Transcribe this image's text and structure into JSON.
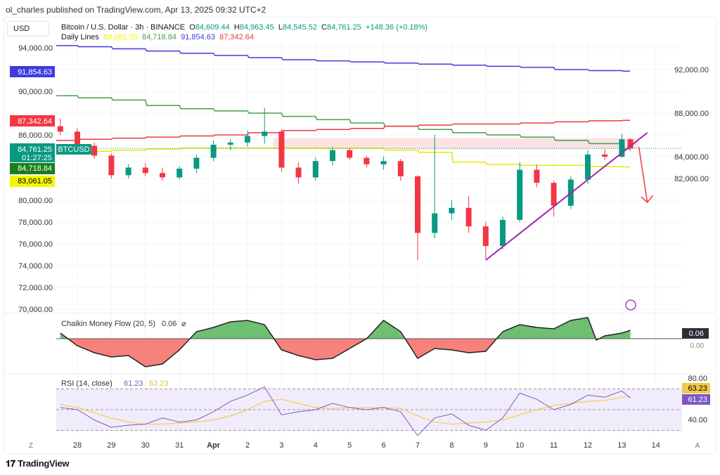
{
  "header": {
    "published": "ol_charles published on TradingView.com, Apr 13, 2025 09:32 UTC+2",
    "currency": "USD",
    "symbol": "Bitcoin / U.S. Dollar · 3h · BINANCE",
    "o_label": "O",
    "o": "84,609.44",
    "h_label": "H",
    "h": "84,963.45",
    "l_label": "L",
    "l": "84,545.52",
    "c_label": "C",
    "c": "84,761.25",
    "change": "+148.36 (+0.18%)",
    "daily_label": "Daily Lines",
    "daily": [
      "83,061.05",
      "84,718.84",
      "91,854.63",
      "87,342.64"
    ]
  },
  "footer": {
    "logo": "TradingView"
  },
  "colors": {
    "up": "#089981",
    "down": "#f23645",
    "blue": "#3c3ce0",
    "green": "#43a047",
    "red": "#f23645",
    "yellow": "#f5f500",
    "rsi": "#7e57c2",
    "rsi_ma": "#f2d36b",
    "trend": "#9c27b0"
  },
  "chart_data": [
    {
      "type": "candlestick",
      "ylim": [
        70000,
        95000
      ],
      "yticks": [
        "94,000.00",
        "92,000.00",
        "90,000.00",
        "88,000.00",
        "86,000.00",
        "84,000.00",
        "82,000.00",
        "80,000.00",
        "78,000.00",
        "76,000.00",
        "74,000.00",
        "72,000.00",
        "70,000.00"
      ],
      "xticks": [
        "28",
        "29",
        "30",
        "31",
        "Apr",
        "2",
        "3",
        "4",
        "5",
        "6",
        "7",
        "8",
        "9",
        "10",
        "11",
        "12",
        "13",
        "14"
      ],
      "xtick_dates": [
        "2025-03-28",
        "2025-03-29",
        "2025-03-30",
        "2025-03-31",
        "2025-04-01",
        "2025-04-02",
        "2025-04-03",
        "2025-04-04",
        "2025-04-05",
        "2025-04-06",
        "2025-04-07",
        "2025-04-08",
        "2025-04-09",
        "2025-04-10",
        "2025-04-11",
        "2025-04-12",
        "2025-04-13",
        "2025-04-14"
      ],
      "symbol_tag": "BTCUSD",
      "countdown": "01:27:25",
      "price_tags": [
        {
          "value": "91,854.63",
          "color": "#3c3ce0"
        },
        {
          "value": "87,342.64",
          "color": "#f23645"
        },
        {
          "value": "84,761.25",
          "color": "#089981"
        },
        {
          "value": "84,718.84",
          "color": "#1b7d1b"
        },
        {
          "value": "83,061.05",
          "color": "#f5f500"
        }
      ],
      "candles": [
        [
          "2025-03-27T12",
          86800,
          87500,
          86000,
          86300
        ],
        [
          "2025-03-28T00",
          86300,
          86600,
          84800,
          85000
        ],
        [
          "2025-03-28T12",
          85000,
          85300,
          83800,
          84100
        ],
        [
          "2025-03-29T00",
          84100,
          84300,
          82000,
          82300
        ],
        [
          "2025-03-29T12",
          82300,
          83300,
          82000,
          83000
        ],
        [
          "2025-03-30T00",
          83000,
          83400,
          82200,
          82500
        ],
        [
          "2025-03-30T12",
          82500,
          83000,
          81800,
          82100
        ],
        [
          "2025-03-31T00",
          82100,
          83100,
          81900,
          82900
        ],
        [
          "2025-03-31T12",
          82900,
          84200,
          82500,
          83900
        ],
        [
          "2025-04-01T00",
          83900,
          85500,
          83600,
          85100
        ],
        [
          "2025-04-01T12",
          85100,
          85600,
          84600,
          85300
        ],
        [
          "2025-04-02T00",
          85300,
          86400,
          84900,
          85900
        ],
        [
          "2025-04-02T12",
          85900,
          88500,
          85200,
          86300
        ],
        [
          "2025-04-03T00",
          86300,
          86500,
          82600,
          83000
        ],
        [
          "2025-04-03T12",
          83000,
          83500,
          81500,
          82100
        ],
        [
          "2025-04-04T00",
          82100,
          83900,
          81800,
          83600
        ],
        [
          "2025-04-04T12",
          83600,
          84900,
          83200,
          84600
        ],
        [
          "2025-04-05T00",
          84600,
          84800,
          83700,
          83900
        ],
        [
          "2025-04-05T12",
          83900,
          84100,
          83000,
          83300
        ],
        [
          "2025-04-06T00",
          83300,
          84000,
          82800,
          83600
        ],
        [
          "2025-04-06T12",
          83600,
          83800,
          81800,
          82200
        ],
        [
          "2025-04-07T00",
          82200,
          82300,
          74500,
          77000
        ],
        [
          "2025-04-07T12",
          77000,
          86000,
          76500,
          78800
        ],
        [
          "2025-04-08T00",
          78800,
          80000,
          78200,
          79300
        ],
        [
          "2025-04-08T12",
          79300,
          80400,
          77000,
          77600
        ],
        [
          "2025-04-09T00",
          77600,
          78000,
          74600,
          75800
        ],
        [
          "2025-04-09T12",
          75800,
          78500,
          75500,
          78200
        ],
        [
          "2025-04-10T00",
          78200,
          83500,
          78000,
          82800
        ],
        [
          "2025-04-10T12",
          82800,
          83300,
          81200,
          81600
        ],
        [
          "2025-04-11T00",
          81600,
          81800,
          78500,
          79500
        ],
        [
          "2025-04-11T12",
          79500,
          82200,
          79200,
          81900
        ],
        [
          "2025-04-12T00",
          81900,
          84600,
          81500,
          84200
        ],
        [
          "2025-04-12T12",
          84200,
          84700,
          83700,
          84000
        ],
        [
          "2025-04-13T00",
          84000,
          86100,
          83900,
          85600
        ],
        [
          "2025-04-13T06",
          85600,
          85700,
          84500,
          84761.25
        ]
      ],
      "daily_lines": {
        "dates_start": "2025-03-27",
        "blue": [
          94200,
          94100,
          93900,
          93700,
          93500,
          93300,
          93100,
          92900,
          92800,
          92700,
          92600,
          92500,
          92400,
          92300,
          92200,
          92000,
          91900,
          91854.63
        ],
        "green": [
          89600,
          89400,
          89200,
          88700,
          88400,
          88200,
          88000,
          87700,
          87400,
          87100,
          86800,
          86500,
          86200,
          86000,
          85800,
          85500,
          85200,
          84718.84
        ],
        "red": [
          85500,
          85600,
          85700,
          85800,
          85900,
          86000,
          86200,
          86400,
          86500,
          86600,
          86800,
          86900,
          87000,
          87000,
          87100,
          87200,
          87300,
          87342.64
        ],
        "yellow": [
          84300,
          84500,
          84600,
          84700,
          84800,
          84800,
          84800,
          84800,
          84800,
          84800,
          84600,
          84400,
          83500,
          83300,
          83200,
          83200,
          83100,
          83061.05
        ]
      },
      "zone": {
        "from": "2025-04-02T18",
        "to": "2025-04-13T12",
        "low": 84700,
        "high": 85700
      },
      "trendline": [
        [
          "2025-04-09T00",
          74500
        ],
        [
          "2025-04-13T18",
          86200
        ]
      ],
      "arrow": [
        [
          "2025-04-13T12",
          84900
        ],
        [
          "2025-04-13T18",
          79800
        ]
      ]
    },
    {
      "type": "area",
      "title": "Chaikin Money Flow (20, 5)",
      "value": "0.06",
      "value_tag": "0.06",
      "zero_label": "0.00",
      "symbol": "⌀",
      "dates": [
        "2025-03-27T12",
        "2025-03-28T00",
        "2025-03-28T12",
        "2025-03-29T00",
        "2025-03-29T12",
        "2025-03-30T00",
        "2025-03-30T12",
        "2025-03-31T00",
        "2025-03-31T12",
        "2025-04-01T00",
        "2025-04-01T12",
        "2025-04-02T00",
        "2025-04-02T12",
        "2025-04-03T00",
        "2025-04-03T12",
        "2025-04-04T00",
        "2025-04-04T12",
        "2025-04-05T00",
        "2025-04-05T12",
        "2025-04-06T00",
        "2025-04-06T12",
        "2025-04-07T00",
        "2025-04-07T12",
        "2025-04-08T00",
        "2025-04-08T12",
        "2025-04-09T00",
        "2025-04-09T12",
        "2025-04-10T00",
        "2025-04-10T12",
        "2025-04-11T00",
        "2025-04-11T12",
        "2025-04-12T00",
        "2025-04-12T06",
        "2025-04-12T12",
        "2025-04-13T00",
        "2025-04-13T06"
      ],
      "values": [
        0.04,
        -0.05,
        -0.1,
        -0.13,
        -0.12,
        -0.2,
        -0.18,
        -0.08,
        0.05,
        0.08,
        0.12,
        0.13,
        0.1,
        -0.08,
        -0.12,
        -0.15,
        -0.14,
        -0.07,
        0.0,
        0.13,
        0.05,
        -0.14,
        -0.07,
        -0.08,
        -0.1,
        -0.09,
        0.05,
        0.1,
        0.08,
        0.07,
        0.13,
        0.15,
        -0.01,
        0.02,
        0.04,
        0.06
      ]
    },
    {
      "type": "line",
      "title": "RSI (14, close)",
      "rsi_value": "61.23",
      "ma_value": "63.23",
      "yticks": [
        "80.00",
        "40.00"
      ],
      "bands": [
        70,
        50,
        30
      ],
      "dates": [
        "2025-03-27T12",
        "2025-03-28T00",
        "2025-03-28T12",
        "2025-03-29T00",
        "2025-03-29T12",
        "2025-03-30T00",
        "2025-03-30T12",
        "2025-03-31T00",
        "2025-03-31T12",
        "2025-04-01T00",
        "2025-04-01T12",
        "2025-04-02T00",
        "2025-04-02T12",
        "2025-04-03T00",
        "2025-04-03T12",
        "2025-04-04T00",
        "2025-04-04T12",
        "2025-04-05T00",
        "2025-04-05T12",
        "2025-04-06T00",
        "2025-04-06T12",
        "2025-04-07T00",
        "2025-04-07T12",
        "2025-04-08T00",
        "2025-04-08T12",
        "2025-04-09T00",
        "2025-04-09T12",
        "2025-04-10T00",
        "2025-04-10T12",
        "2025-04-11T00",
        "2025-04-11T12",
        "2025-04-12T00",
        "2025-04-12T12",
        "2025-04-13T00",
        "2025-04-13T06"
      ],
      "rsi": [
        52,
        50,
        40,
        33,
        35,
        36,
        42,
        38,
        40,
        48,
        58,
        64,
        72,
        45,
        48,
        50,
        56,
        52,
        50,
        52,
        48,
        25,
        42,
        46,
        35,
        30,
        42,
        66,
        60,
        50,
        55,
        64,
        62,
        68,
        61.23
      ],
      "ma": [
        55,
        52,
        47,
        42,
        38,
        36,
        36,
        37,
        38,
        40,
        44,
        50,
        58,
        60,
        56,
        52,
        51,
        52,
        52,
        52,
        51,
        44,
        38,
        36,
        37,
        38,
        40,
        45,
        50,
        54,
        56,
        58,
        59,
        62,
        63.23
      ]
    }
  ]
}
